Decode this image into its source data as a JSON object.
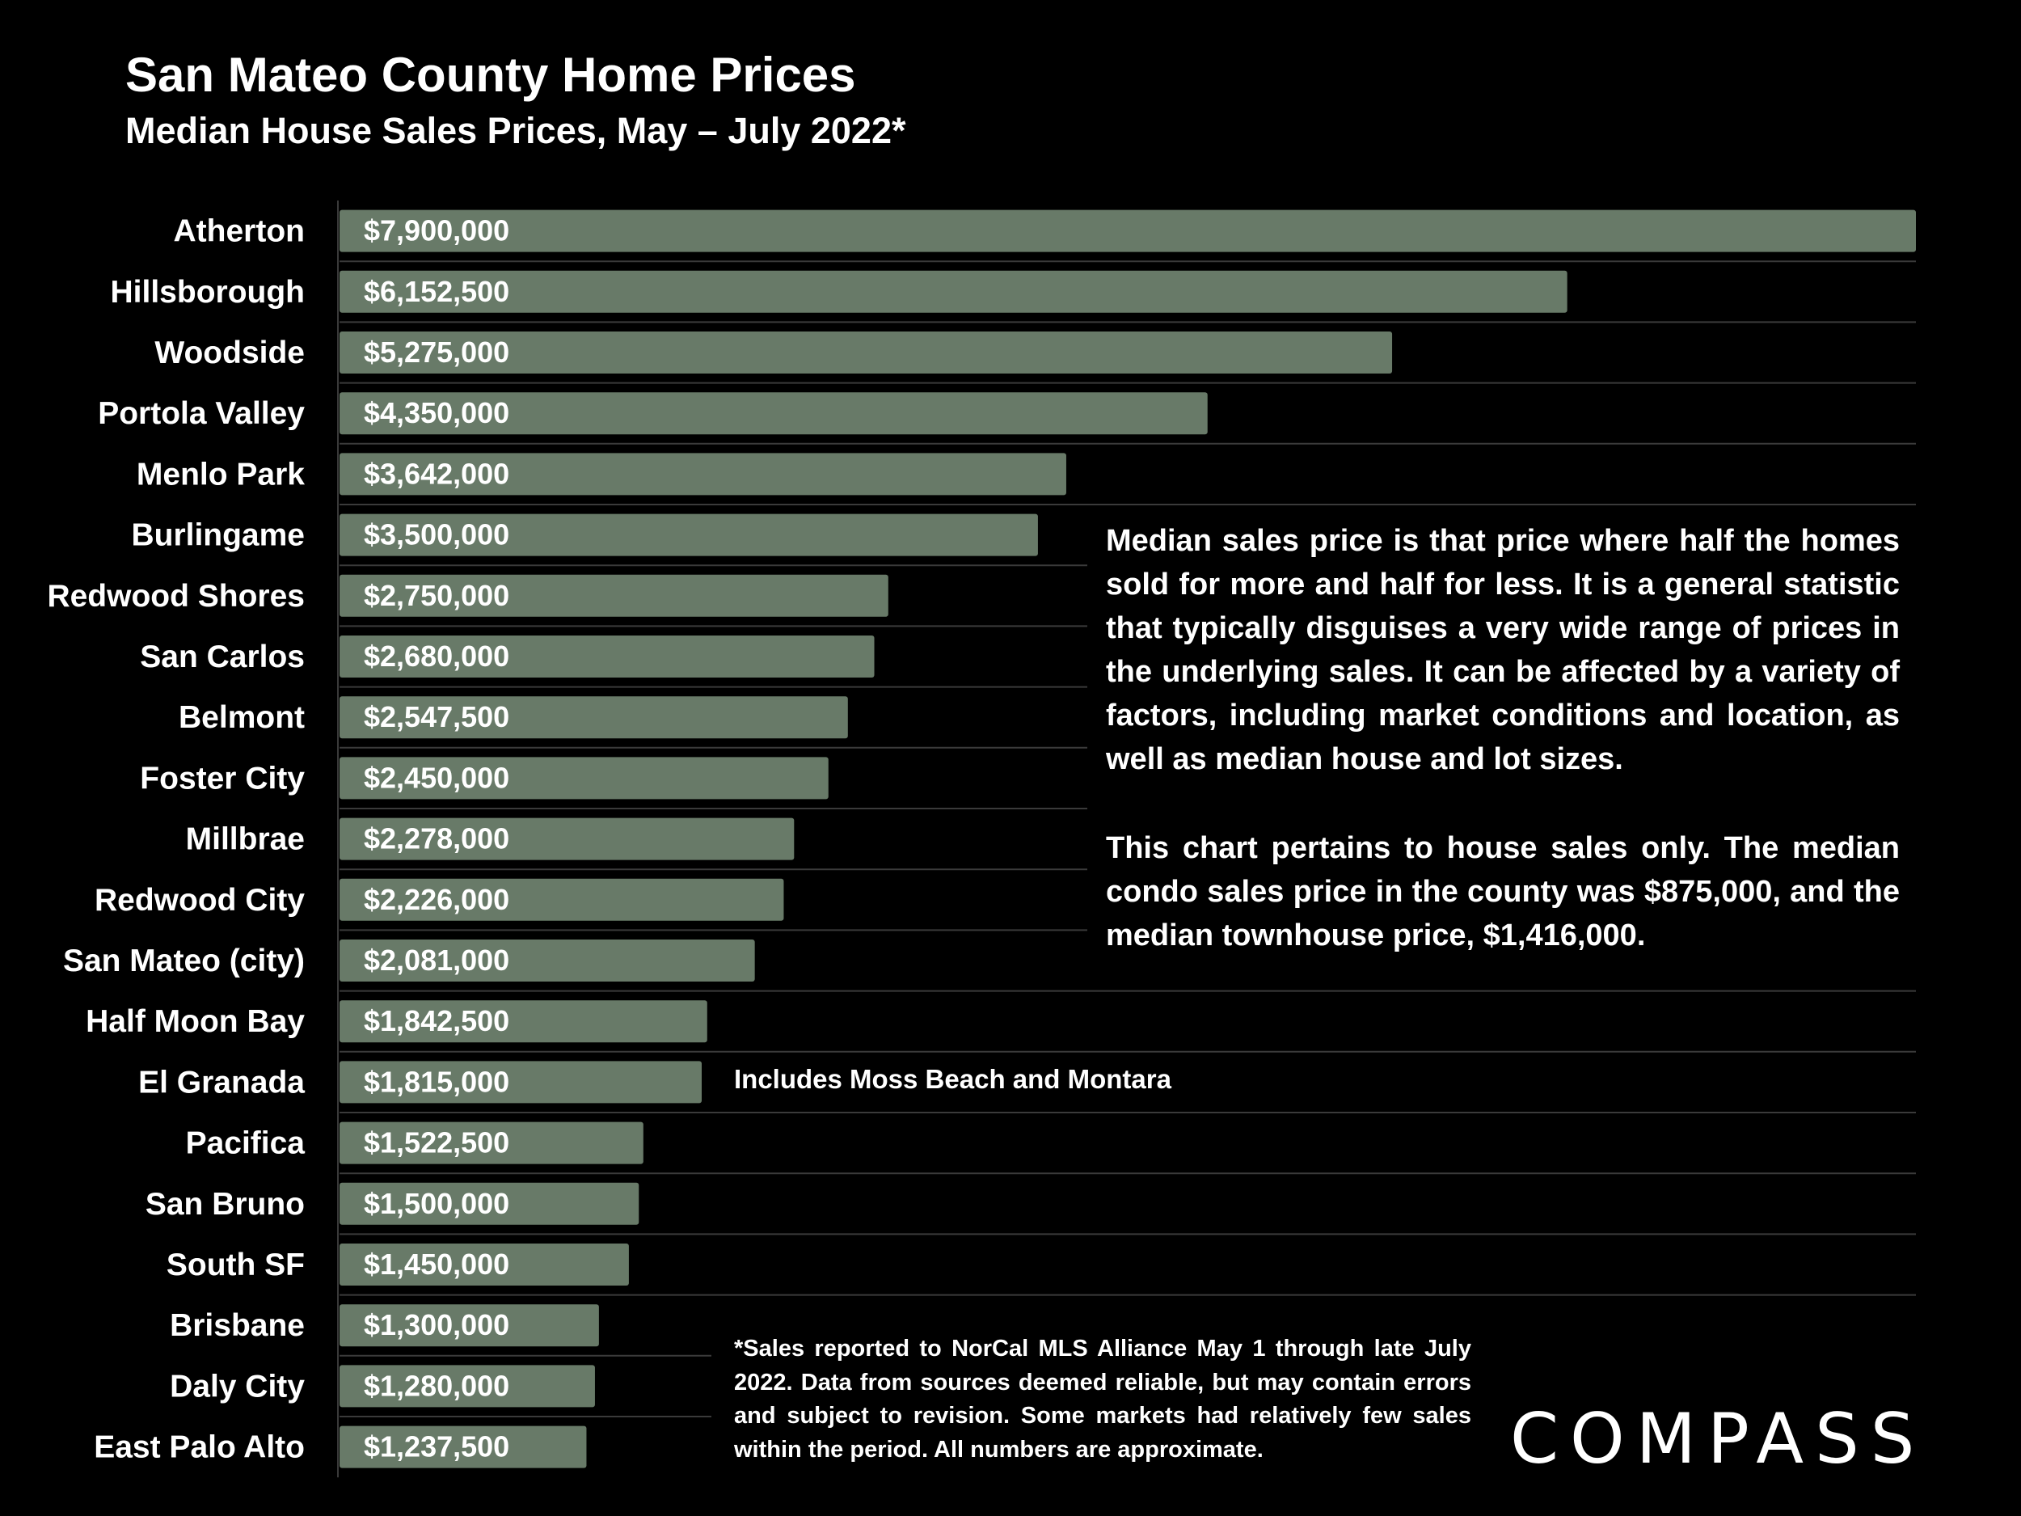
{
  "chart_data": {
    "type": "bar",
    "orientation": "horizontal",
    "title": "San Mateo County Home Prices",
    "subtitle": "Median House Sales Prices, May – July 2022*",
    "categories": [
      "Atherton",
      "Hillsborough",
      "Woodside",
      "Portola Valley",
      "Menlo Park",
      "Burlingame",
      "Redwood Shores",
      "San Carlos",
      "Belmont",
      "Foster City",
      "Millbrae",
      "Redwood City",
      "San Mateo (city)",
      "Half Moon Bay",
      "El Granada",
      "Pacifica",
      "San Bruno",
      "South SF",
      "Brisbane",
      "Daly City",
      "East Palo Alto"
    ],
    "values": [
      7900000,
      6152500,
      5275000,
      4350000,
      3642000,
      3500000,
      2750000,
      2680000,
      2547500,
      2450000,
      2278000,
      2226000,
      2081000,
      1842500,
      1815000,
      1522500,
      1500000,
      1450000,
      1300000,
      1280000,
      1237500
    ],
    "value_labels": [
      "$7,900,000",
      "$6,152,500",
      "$5,275,000",
      "$4,350,000",
      "$3,642,000",
      "$3,500,000",
      "$2,750,000",
      "$2,680,000",
      "$2,547,500",
      "$2,450,000",
      "$2,278,000",
      "$2,226,000",
      "$2,081,000",
      "$1,842,500",
      "$1,815,000",
      "$1,522,500",
      "$1,500,000",
      "$1,450,000",
      "$1,300,000",
      "$1,280,000",
      "$1,237,500"
    ],
    "xlim": [
      0,
      7900000
    ],
    "xlabel": "",
    "ylabel": "",
    "grid": true,
    "bar_color": "#687a68",
    "gridline_color": "#3a3a3a",
    "annotations": [
      {
        "category": "El Granada",
        "text": "Includes Moss Beach and Montara"
      }
    ]
  },
  "notes": {
    "definition": "Median sales price is that price where half the homes sold for more and half for less. It is a general statistic that typically disguises a very wide range of prices in the underlying sales. It can be affected by a variety of factors, including market conditions and location, as well as median house and lot sizes.",
    "scope": "This chart pertains to house sales only. The median condo sales price in the county was $875,000, and the median townhouse price, $1,416,000.",
    "footnote": "*Sales reported to NorCal MLS Alliance May 1 through late July 2022. Data from sources deemed reliable, but may contain errors and subject to revision. Some markets had relatively few sales within the period. All numbers are approximate."
  },
  "brand": {
    "logo_text": "COMPASS",
    "background": "#000000",
    "text_color": "#ffffff"
  }
}
